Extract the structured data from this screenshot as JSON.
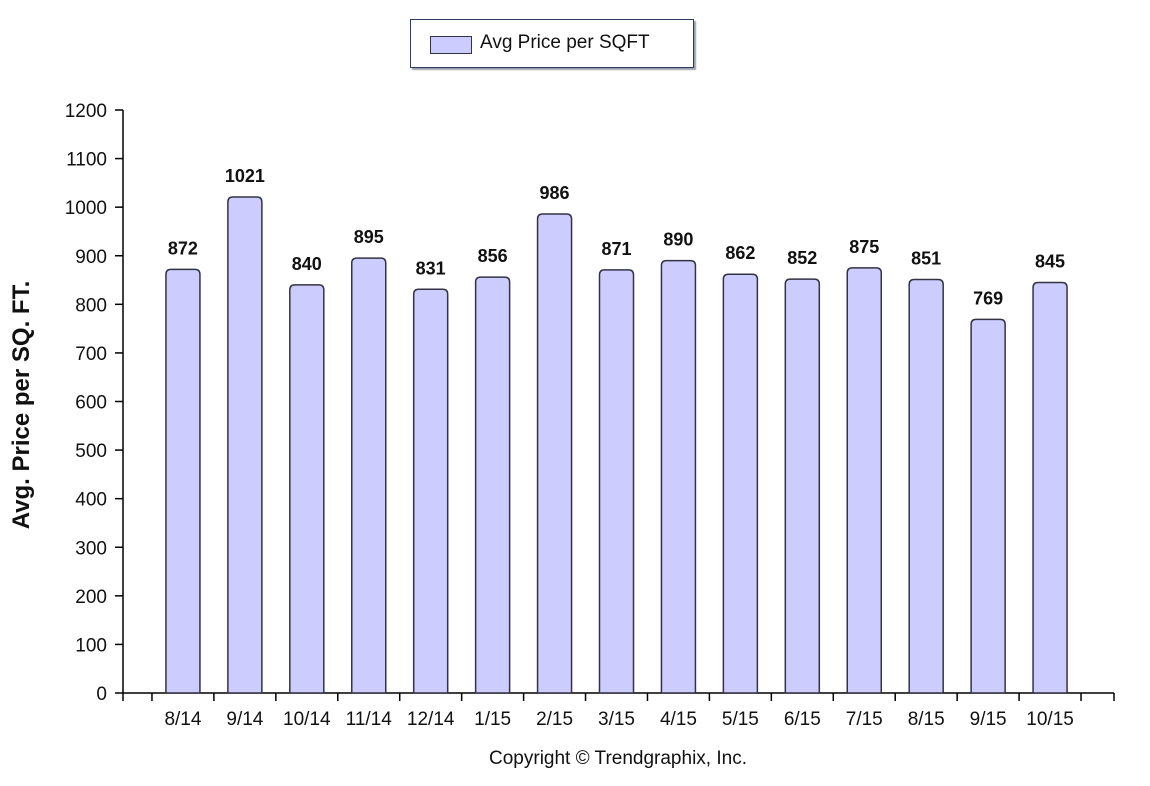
{
  "chart_data": {
    "type": "bar",
    "categories": [
      "8/14",
      "9/14",
      "10/14",
      "11/14",
      "12/14",
      "1/15",
      "2/15",
      "3/15",
      "4/15",
      "5/15",
      "6/15",
      "7/15",
      "8/15",
      "9/15",
      "10/15"
    ],
    "series": [
      {
        "name": "Avg Price per SQFT",
        "values": [
          872,
          1021,
          840,
          895,
          831,
          856,
          986,
          871,
          890,
          862,
          852,
          875,
          851,
          769,
          845
        ],
        "color": "#ccccff"
      }
    ],
    "ylabel": "Avg. Price per SQ. FT.",
    "ylim": [
      0,
      1200
    ],
    "yticks": [
      0,
      100,
      200,
      300,
      400,
      500,
      600,
      700,
      800,
      900,
      1000,
      1100,
      1200
    ],
    "data_labels": true,
    "grid": false,
    "legend_position": "top-center"
  },
  "footer": {
    "copyright": "Copyright © Trendgraphix, Inc."
  },
  "colors": {
    "bar_fill": "#ccccff",
    "bar_stroke": "#333344",
    "axis": "#000000",
    "text": "#111111"
  }
}
